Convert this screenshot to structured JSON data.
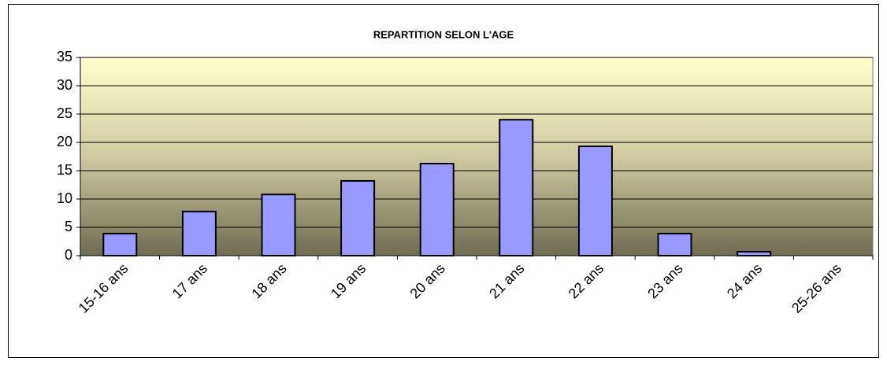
{
  "chart_data": {
    "type": "bar",
    "title": "REPARTITION SELON L'AGE",
    "categories": [
      "15-16 ans",
      "17 ans",
      "18 ans",
      "19 ans",
      "20 ans",
      "21 ans",
      "22 ans",
      "23 ans",
      "24 ans",
      "25-26 ans"
    ],
    "values": [
      3.9,
      7.8,
      10.8,
      13.2,
      16.25,
      24,
      19.3,
      3.9,
      0.7,
      0
    ],
    "color": "#9999ff",
    "ylim": [
      0,
      35
    ],
    "yticks": [
      0,
      5,
      10,
      15,
      20,
      25,
      30,
      35
    ],
    "grid": true
  }
}
